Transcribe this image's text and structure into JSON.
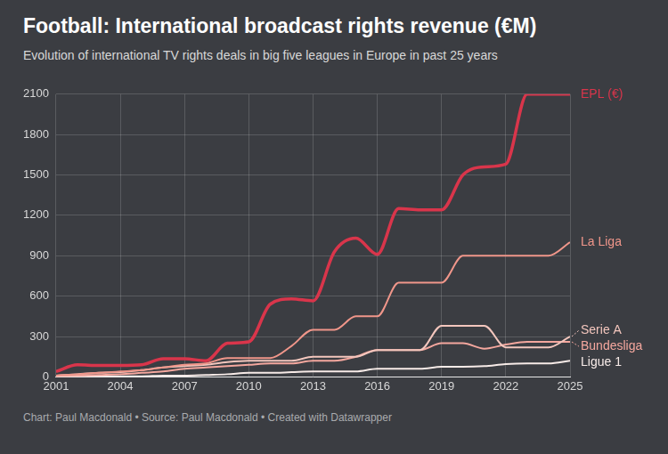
{
  "chart_data": {
    "type": "line",
    "title": "Football: International broadcast rights revenue (€M)",
    "subtitle": "Evolution of international TV rights deals in big five leagues in Europe in past 25 years",
    "note": "Chart: Paul Macdonald • Source: Paul Macdonald • Created with Datawrapper",
    "x": [
      2001,
      2002,
      2003,
      2004,
      2005,
      2006,
      2007,
      2008,
      2009,
      2010,
      2011,
      2012,
      2013,
      2014,
      2015,
      2016,
      2017,
      2018,
      2019,
      2020,
      2021,
      2022,
      2023,
      2024,
      2025
    ],
    "series": [
      {
        "name": "EPL (€)",
        "color": "#d9354b",
        "values": [
          40,
          90,
          85,
          85,
          90,
          135,
          135,
          120,
          250,
          260,
          540,
          580,
          565,
          930,
          1030,
          910,
          1250,
          1240,
          1240,
          1500,
          1560,
          1580,
          2100,
          2100,
          2100
        ]
      },
      {
        "name": "La Liga",
        "color": "#f0968a",
        "values": [
          10,
          20,
          30,
          40,
          50,
          70,
          90,
          100,
          140,
          140,
          140,
          230,
          350,
          350,
          450,
          450,
          700,
          700,
          700,
          900,
          900,
          900,
          900,
          900,
          1000
        ]
      },
      {
        "name": "Serie A",
        "color": "#f3c6bd",
        "values": [
          10,
          20,
          30,
          35,
          50,
          70,
          80,
          90,
          110,
          120,
          120,
          120,
          150,
          150,
          150,
          200,
          200,
          200,
          380,
          380,
          380,
          220,
          220,
          220,
          300
        ]
      },
      {
        "name": "Bundesliga",
        "color": "#f4a79e",
        "values": [
          5,
          10,
          15,
          20,
          30,
          40,
          60,
          70,
          80,
          90,
          100,
          100,
          120,
          120,
          150,
          200,
          200,
          200,
          250,
          250,
          210,
          240,
          260,
          260,
          260
        ]
      },
      {
        "name": "Ligue 1",
        "color": "#f7ebe8",
        "values": [
          0,
          0,
          5,
          5,
          5,
          10,
          10,
          15,
          20,
          30,
          30,
          35,
          40,
          40,
          40,
          60,
          60,
          60,
          75,
          75,
          80,
          95,
          100,
          100,
          120
        ]
      }
    ],
    "xlim": [
      2001,
      2025
    ],
    "xticks": [
      2001,
      2004,
      2007,
      2010,
      2013,
      2016,
      2019,
      2022,
      2025
    ],
    "ylim": [
      0,
      2100
    ],
    "yticks": [
      0,
      300,
      600,
      900,
      1200,
      1500,
      1800,
      2100
    ],
    "grid": true
  }
}
